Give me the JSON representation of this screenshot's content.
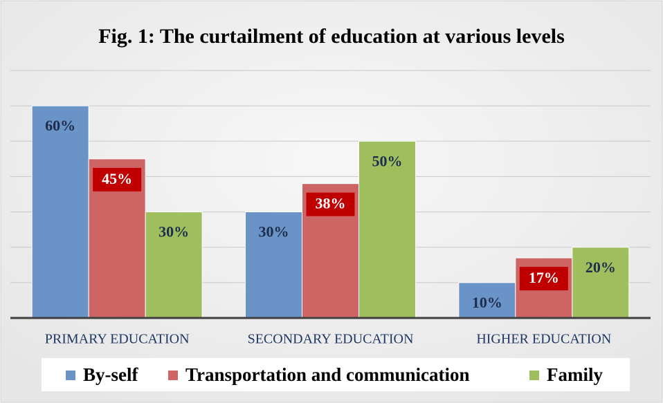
{
  "chart_data": {
    "type": "bar",
    "title": "Fig. 1: The curtailment of education at various levels",
    "categories": [
      "PRIMARY EDUCATION",
      "SECONDARY EDUCATION",
      "HIGHER EDUCATION"
    ],
    "series": [
      {
        "name": "By-self",
        "color": "#6a93c8",
        "values": [
          60,
          30,
          10
        ],
        "value_labels": [
          "60%",
          "30%",
          "10%"
        ]
      },
      {
        "name": "Transportation and communication",
        "color": "#cd6564",
        "values": [
          45,
          38,
          17
        ],
        "value_labels": [
          "45%",
          "38%",
          "17%"
        ]
      },
      {
        "name": "Family",
        "color": "#9fbf5f",
        "values": [
          30,
          50,
          20
        ],
        "value_labels": [
          "30%",
          "50%",
          "20%"
        ]
      }
    ],
    "ylim": [
      0,
      70
    ],
    "yticks": [
      0,
      10,
      20,
      30,
      40,
      50,
      60,
      70
    ],
    "grid": true,
    "legend": "bottom"
  }
}
